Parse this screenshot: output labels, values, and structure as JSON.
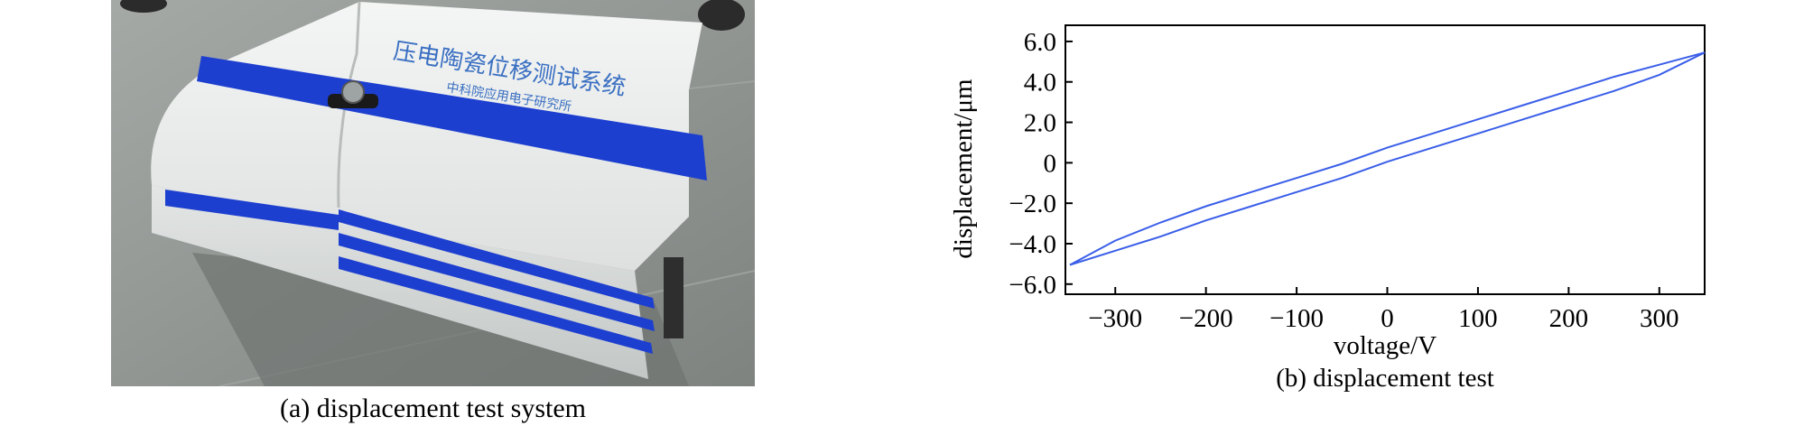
{
  "captions": {
    "a": "(a) displacement test system",
    "b": "(b) displacement test"
  },
  "photo": {
    "device_label_line1": "压电陶瓷位移测试系统",
    "device_label_line2": "中科院应用电子研究所",
    "colors": {
      "background": "#8f9390",
      "device_body": "#eceeed",
      "device_shadow": "#c9cccb",
      "stripe": "#1d3fd0",
      "label_text": "#3a6fc2"
    }
  },
  "chart_data": {
    "type": "line",
    "title": "",
    "xlabel": "voltage/V",
    "ylabel": "displacement/μm",
    "xlim": [
      -355,
      350
    ],
    "ylim": [
      -6.5,
      6.8
    ],
    "xticks": [
      -300,
      -200,
      -100,
      0,
      100,
      200,
      300
    ],
    "xtick_labels": [
      "−300",
      "−200",
      "−100",
      "0",
      "100",
      "200",
      "300"
    ],
    "yticks": [
      -6,
      -4,
      -2,
      0,
      2,
      4,
      6
    ],
    "ytick_labels": [
      "−6.0",
      "−4.0",
      "−2.0",
      "0",
      "2.0",
      "4.0",
      "6.0"
    ],
    "grid": false,
    "line_color": "#3a5ee8",
    "series": [
      {
        "x": [
          -350,
          -300,
          -250,
          -200,
          -150,
          -100,
          -50,
          0,
          50,
          100,
          150,
          200,
          250,
          300,
          350
        ],
        "y": [
          -5.05,
          -4.35,
          -3.65,
          -2.85,
          -2.15,
          -1.45,
          -0.75,
          0.05,
          0.75,
          1.45,
          2.15,
          2.85,
          3.55,
          4.35,
          5.45
        ]
      },
      {
        "x": [
          350,
          300,
          250,
          200,
          150,
          100,
          50,
          0,
          -50,
          -100,
          -150,
          -200,
          -250,
          -300,
          -350
        ],
        "y": [
          5.45,
          4.85,
          4.25,
          3.55,
          2.85,
          2.15,
          1.45,
          0.75,
          -0.05,
          -0.75,
          -1.45,
          -2.15,
          -2.95,
          -3.85,
          -5.05
        ]
      }
    ]
  }
}
